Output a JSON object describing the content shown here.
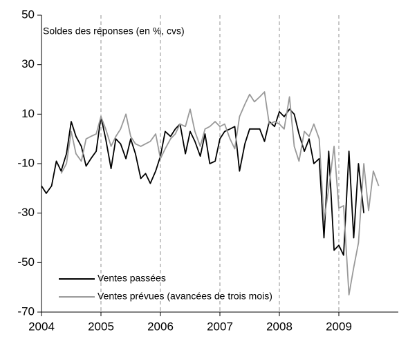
{
  "chart_data": {
    "type": "line",
    "annotation": "Soldes des réponses (en %, cvs)",
    "x": [
      2004,
      2004.08,
      2004.17,
      2004.25,
      2004.33,
      2004.42,
      2004.5,
      2004.58,
      2004.67,
      2004.75,
      2004.83,
      2004.92,
      2005,
      2005.08,
      2005.17,
      2005.25,
      2005.33,
      2005.42,
      2005.5,
      2005.58,
      2005.67,
      2005.75,
      2005.83,
      2005.92,
      2006,
      2006.08,
      2006.17,
      2006.25,
      2006.33,
      2006.42,
      2006.5,
      2006.58,
      2006.67,
      2006.75,
      2006.83,
      2006.92,
      2007,
      2007.08,
      2007.17,
      2007.25,
      2007.33,
      2007.42,
      2007.5,
      2007.58,
      2007.67,
      2007.75,
      2007.83,
      2007.92,
      2008,
      2008.08,
      2008.17,
      2008.25,
      2008.33,
      2008.42,
      2008.5,
      2008.58,
      2008.67,
      2008.75,
      2008.83,
      2008.92,
      2009,
      2009.08,
      2009.17,
      2009.25,
      2009.33,
      2009.42,
      2009.5,
      2009.58,
      2009.67
    ],
    "series": [
      {
        "name": "Ventes passées",
        "color": "#000000",
        "values": [
          -19,
          -22,
          -19,
          -9,
          -13,
          -6,
          7,
          1,
          -3,
          -11,
          -8,
          -5,
          9,
          0,
          -12,
          0,
          -2,
          -8,
          0,
          -6,
          -16,
          -14,
          -18,
          -13,
          -7,
          3,
          1,
          4,
          6,
          -6,
          3,
          -1,
          -7,
          2,
          -10,
          -9,
          0,
          3,
          4,
          5,
          -13,
          -2,
          4,
          4,
          4,
          -1,
          7,
          5,
          11,
          9,
          12,
          10,
          2,
          -5,
          0,
          -10,
          -8,
          -40,
          -5,
          -45,
          -43,
          -47,
          -5,
          -40,
          -10,
          -30,
          null,
          null,
          null
        ]
      },
      {
        "name": "Ventes prévues (avancées de trois mois)",
        "color": "#999999",
        "values": [
          null,
          null,
          null,
          null,
          -14,
          -10,
          3,
          -6,
          -9,
          0,
          1,
          2,
          9,
          4,
          -3,
          1,
          4,
          10,
          1,
          -2,
          -3,
          -2,
          -1,
          2,
          -8,
          -4,
          0,
          2,
          6,
          5,
          12,
          3,
          -3,
          4,
          5,
          7,
          5,
          6,
          0,
          -4,
          9,
          14,
          18,
          15,
          17,
          19,
          6,
          7,
          6,
          4,
          17,
          -3,
          -9,
          3,
          1,
          6,
          0,
          -33,
          -20,
          -3,
          -28,
          -27,
          -63,
          -52,
          -42,
          -10,
          -29,
          -13,
          -19
        ]
      }
    ],
    "xlim": [
      2004,
      2010
    ],
    "xticks": [
      2004,
      2005,
      2006,
      2007,
      2008,
      2009
    ],
    "ylim": [
      -70,
      50
    ],
    "yticks": [
      -70,
      -50,
      -30,
      -10,
      10,
      30,
      50
    ],
    "grid": "x",
    "legend": "lower left"
  }
}
